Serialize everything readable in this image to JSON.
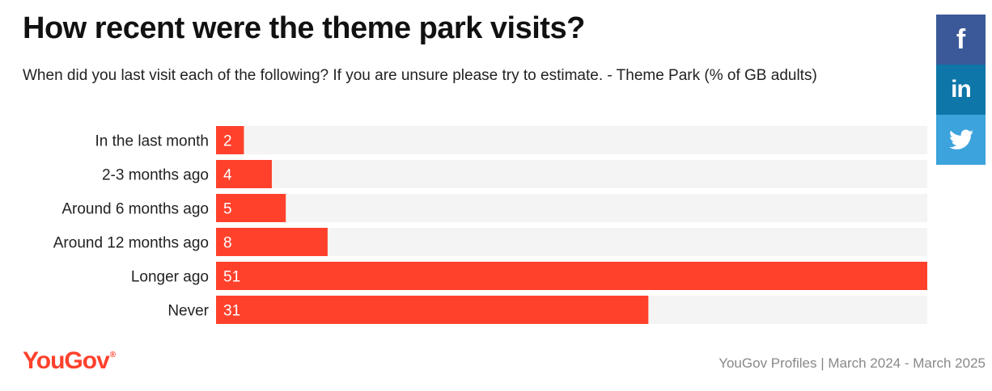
{
  "header": {
    "title": "How recent were the theme park visits?",
    "subtitle": "When did you last visit each of the following? If you are unsure please try to estimate. - Theme Park (% of GB adults)"
  },
  "social": {
    "facebook_icon": "f",
    "linkedin_icon": "in",
    "twitter_icon": "twitter-bird"
  },
  "footer": {
    "logo": "YouGov",
    "logo_mark": "®",
    "source": "YouGov Profiles | March 2024 - March 2025"
  },
  "colors": {
    "bar": "#ff412c",
    "track": "#f4f4f4",
    "brand": "#ff412c"
  },
  "chart_data": {
    "type": "bar",
    "orientation": "horizontal",
    "categories": [
      "In the last month",
      "2-3 months ago",
      "Around 6 months ago",
      "Around 12 months ago",
      "Longer ago",
      "Never"
    ],
    "values": [
      2,
      4,
      5,
      8,
      51,
      31
    ],
    "xlim": [
      0,
      51
    ],
    "grid": false,
    "data_labels": true
  }
}
